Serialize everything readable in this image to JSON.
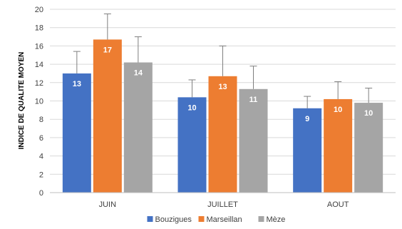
{
  "chart_data": {
    "type": "bar",
    "title": "",
    "xlabel": "",
    "ylabel": "INDICE DE QUALITE MOYEN",
    "categories": [
      "JUIN",
      "JUILLET",
      "AOUT"
    ],
    "ylim": [
      0,
      20
    ],
    "yticks": [
      0,
      2,
      4,
      6,
      8,
      10,
      12,
      14,
      16,
      18,
      20
    ],
    "grid": true,
    "legend_position": "bottom",
    "series": [
      {
        "name": "Bouzigues",
        "color": "#4472c4",
        "values": [
          13.0,
          10.4,
          9.2
        ],
        "error": [
          2.4,
          1.9,
          1.3
        ],
        "labels": [
          "13",
          "10",
          "9"
        ]
      },
      {
        "name": "Marseillan",
        "color": "#ed7d31",
        "values": [
          16.7,
          12.7,
          10.2
        ],
        "error": [
          2.8,
          3.3,
          1.9
        ],
        "labels": [
          "17",
          "13",
          "10"
        ]
      },
      {
        "name": "Mèze",
        "color": "#a5a5a5",
        "values": [
          14.2,
          11.3,
          9.8
        ],
        "error": [
          2.8,
          2.5,
          1.6
        ],
        "labels": [
          "14",
          "11",
          "10"
        ]
      }
    ]
  }
}
